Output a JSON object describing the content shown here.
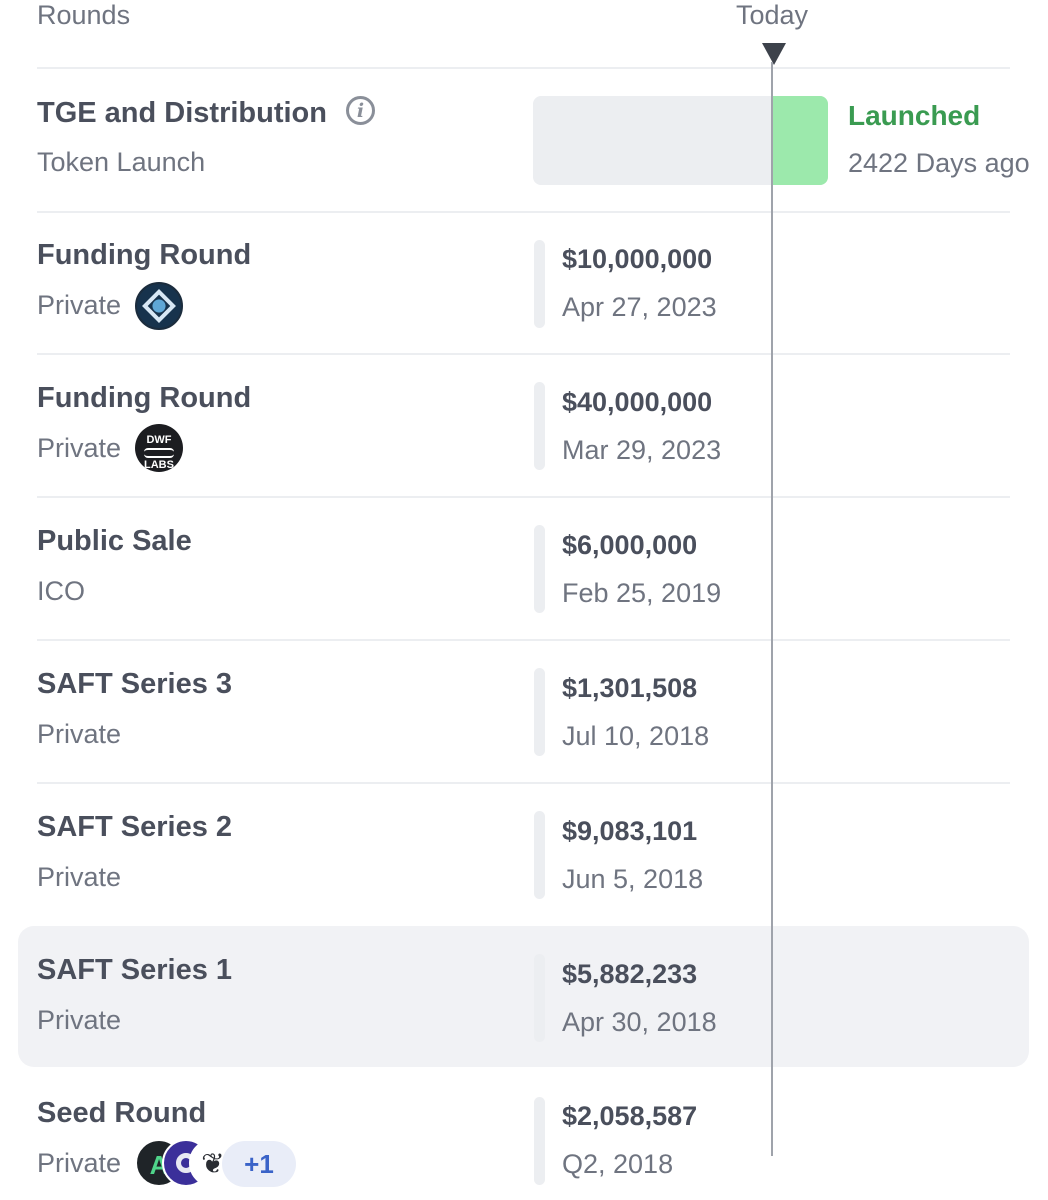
{
  "header": {
    "rounds_label": "Rounds",
    "today_label": "Today"
  },
  "tge": {
    "title": "TGE and Distribution",
    "subtitle": "Token Launch",
    "info_icon": "info-icon",
    "status": "Launched",
    "days_ago": "2422 Days ago",
    "status_color": "#3a9b51",
    "bar_fill_color": "#9ce9ac"
  },
  "rounds": [
    {
      "title": "Funding Round",
      "type": "Private",
      "amount": "$10,000,000",
      "date": "Apr 27, 2023",
      "investor_logos": [
        "blue-arrow-logo"
      ]
    },
    {
      "title": "Funding Round",
      "type": "Private",
      "amount": "$40,000,000",
      "date": "Mar 29, 2023",
      "investor_logos": [
        "dwf-labs-logo"
      ]
    },
    {
      "title": "Public Sale",
      "type": "ICO",
      "amount": "$6,000,000",
      "date": "Feb 25, 2019",
      "investor_logos": []
    },
    {
      "title": "SAFT Series 3",
      "type": "Private",
      "amount": "$1,301,508",
      "date": "Jul 10, 2018",
      "investor_logos": []
    },
    {
      "title": "SAFT Series 2",
      "type": "Private",
      "amount": "$9,083,101",
      "date": "Jun 5, 2018",
      "investor_logos": []
    },
    {
      "title": "SAFT Series 1",
      "type": "Private",
      "amount": "$5,882,233",
      "date": "Apr 30, 2018",
      "investor_logos": [],
      "highlighted": true
    },
    {
      "title": "Seed Round",
      "type": "Private",
      "amount": "$2,058,587",
      "date": "Q2, 2018",
      "investor_logos": [
        "a-logo",
        "o-logo",
        "bird-logo"
      ],
      "more_investors": "+1"
    }
  ],
  "logos": {
    "dwf_line1": "DWF",
    "dwf_line2": "LABS",
    "a_glyph": "A",
    "bird_glyph": "❦"
  }
}
